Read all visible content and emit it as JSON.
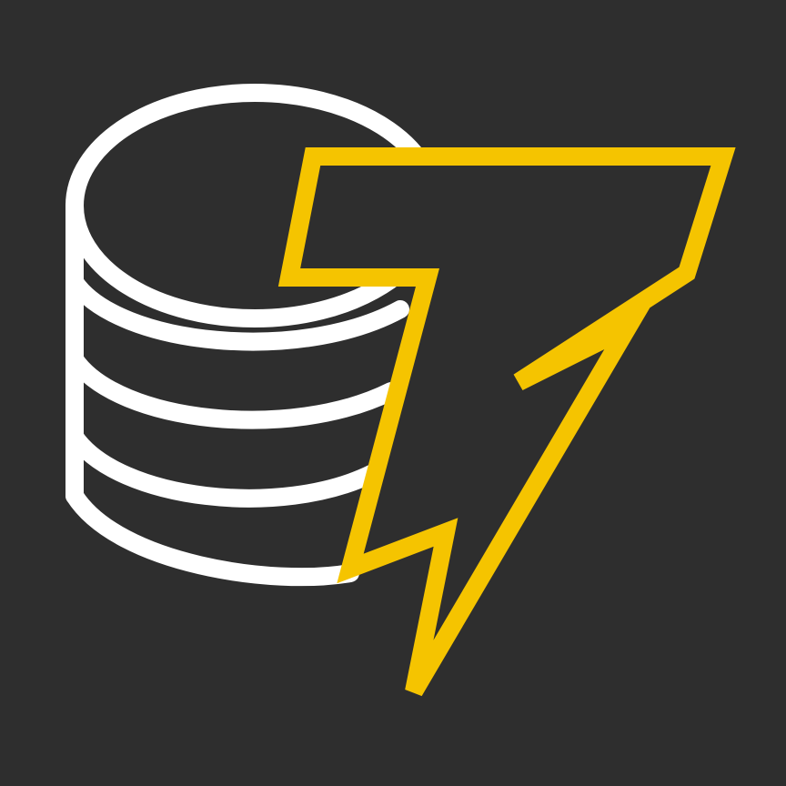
{
  "logo": {
    "name": "database-lightning-t-logo",
    "icons": [
      "database-icon",
      "lightning-t-icon"
    ],
    "colors": {
      "background": "#2e2e2e",
      "database_stroke": "#ffffff",
      "bolt_stroke": "#f5c400",
      "bolt_fill": "#2e2e2e"
    }
  }
}
